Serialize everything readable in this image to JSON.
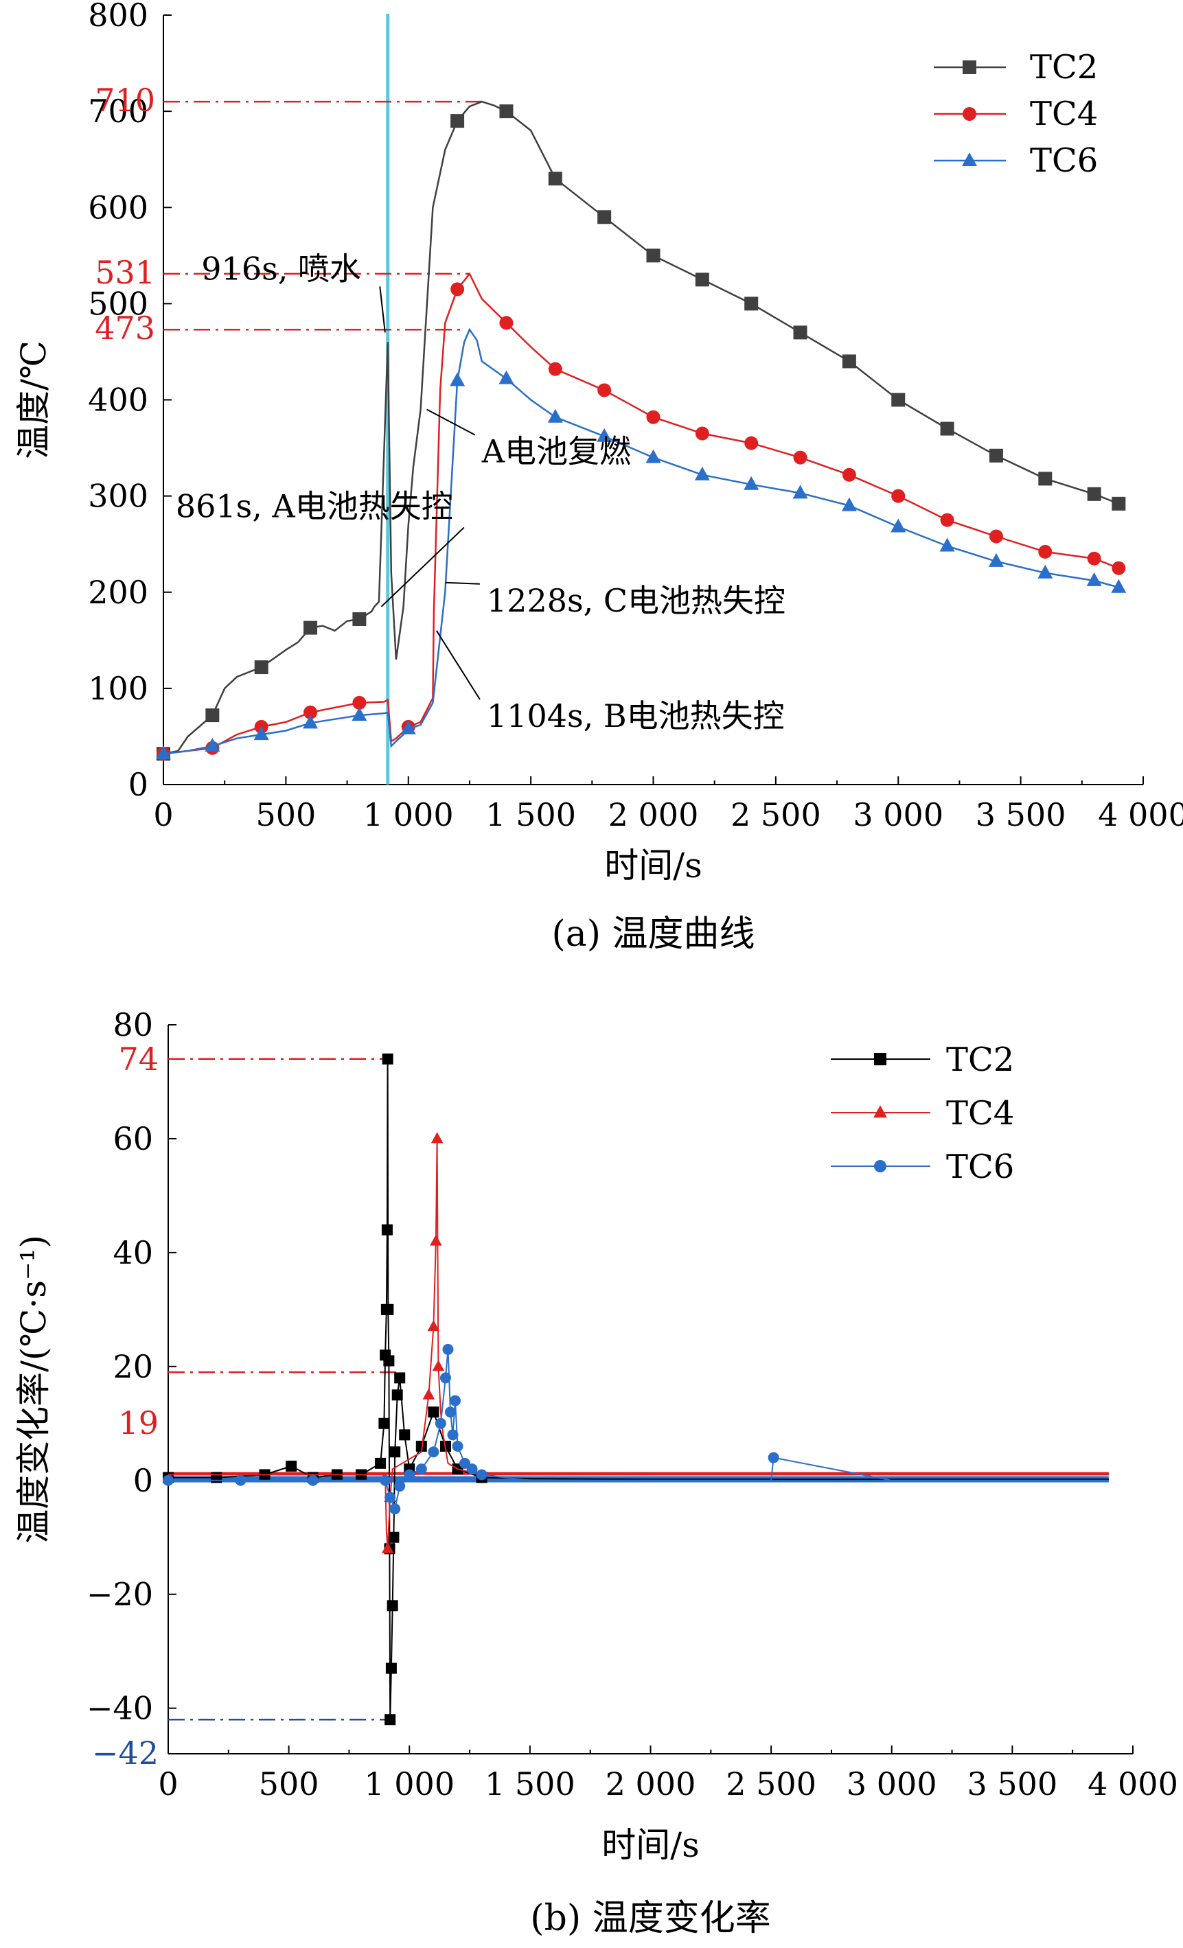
{
  "colors": {
    "TC2": "#404040",
    "TC4": "#e02020",
    "TC6": "#2a6fc9",
    "red": "#e02020",
    "blue": "#1f4e9c",
    "cyan": "#5bc8dc",
    "black": "#000000"
  },
  "chart_data": [
    {
      "type": "line",
      "caption": "(a) 温度曲线",
      "xlabel": "时间/s",
      "ylabel": "温度/℃",
      "xlim": [
        0,
        4000
      ],
      "ylim": [
        0,
        800
      ],
      "xticks": [
        0,
        500,
        1000,
        1500,
        2000,
        2500,
        3000,
        3500,
        4000
      ],
      "xtick_labels": [
        "0",
        "500",
        "1 000",
        "1 500",
        "2 000",
        "2 500",
        "3 000",
        "3 500",
        "4 000"
      ],
      "yticks": [
        0,
        100,
        200,
        300,
        400,
        500,
        600,
        700,
        800
      ],
      "ytick_labels": [
        "0",
        "100",
        "200",
        "300",
        "400",
        "500",
        "600",
        "700",
        "800"
      ],
      "legend_position": "top-right",
      "series": [
        {
          "name": "TC2",
          "marker": "square",
          "x": [
            0,
            60,
            100,
            200,
            250,
            300,
            400,
            500,
            550,
            600,
            650,
            700,
            750,
            800,
            850,
            861,
            880,
            916,
            930,
            950,
            980,
            1000,
            1020,
            1050,
            1100,
            1150,
            1200,
            1250,
            1300,
            1350,
            1400,
            1500,
            1600,
            1800,
            2000,
            2200,
            2400,
            2600,
            2800,
            3000,
            3200,
            3400,
            3600,
            3800,
            3900
          ],
          "y": [
            32,
            35,
            50,
            72,
            100,
            112,
            122,
            140,
            148,
            163,
            165,
            160,
            170,
            172,
            180,
            185,
            190,
            460,
            220,
            130,
            185,
            270,
            330,
            390,
            600,
            660,
            690,
            705,
            710,
            706,
            700,
            680,
            630,
            590,
            550,
            525,
            500,
            470,
            440,
            400,
            370,
            342,
            318,
            302,
            292
          ],
          "markers_x": [
            0,
            200,
            400,
            600,
            800,
            1200,
            1400,
            1600,
            1800,
            2000,
            2200,
            2400,
            2600,
            2800,
            3000,
            3200,
            3400,
            3600,
            3800,
            3900
          ]
        },
        {
          "name": "TC4",
          "marker": "circle",
          "x": [
            0,
            100,
            200,
            250,
            300,
            400,
            500,
            600,
            700,
            800,
            900,
            916,
            930,
            950,
            980,
            1000,
            1050,
            1100,
            1104,
            1130,
            1150,
            1200,
            1250,
            1300,
            1400,
            1500,
            1600,
            1800,
            2000,
            2200,
            2400,
            2600,
            2800,
            3000,
            3200,
            3400,
            3600,
            3800,
            3900
          ],
          "y": [
            32,
            35,
            38,
            45,
            52,
            60,
            65,
            75,
            80,
            85,
            86,
            88,
            45,
            48,
            55,
            60,
            65,
            90,
            180,
            410,
            480,
            515,
            531,
            505,
            480,
            455,
            432,
            410,
            382,
            365,
            355,
            340,
            322,
            300,
            275,
            258,
            242,
            235,
            225
          ],
          "markers_x": [
            0,
            200,
            400,
            600,
            800,
            1000,
            1200,
            1400,
            1600,
            1800,
            2000,
            2200,
            2400,
            2600,
            2800,
            3000,
            3200,
            3400,
            3600,
            3800,
            3900
          ]
        },
        {
          "name": "TC6",
          "marker": "triangle",
          "x": [
            0,
            100,
            200,
            300,
            400,
            500,
            600,
            700,
            800,
            900,
            916,
            930,
            950,
            980,
            1000,
            1050,
            1100,
            1150,
            1200,
            1228,
            1250,
            1280,
            1300,
            1400,
            1500,
            1600,
            1800,
            2000,
            2200,
            2400,
            2600,
            2800,
            3000,
            3200,
            3400,
            3600,
            3800,
            3900
          ],
          "y": [
            32,
            35,
            40,
            48,
            52,
            56,
            64,
            68,
            72,
            74,
            75,
            40,
            45,
            52,
            58,
            62,
            85,
            200,
            420,
            460,
            473,
            462,
            440,
            422,
            400,
            382,
            362,
            340,
            322,
            312,
            303,
            290,
            268,
            248,
            232,
            220,
            212,
            205
          ],
          "markers_x": [
            0,
            200,
            400,
            600,
            800,
            1000,
            1200,
            1400,
            1600,
            1800,
            2000,
            2200,
            2400,
            2600,
            2800,
            3000,
            3200,
            3400,
            3600,
            3800,
            3900
          ]
        }
      ],
      "reference_lines": [
        {
          "value": 710,
          "label": "710",
          "x_end": 1300
        },
        {
          "value": 531,
          "label": "531",
          "x_end": 1250
        },
        {
          "value": 473,
          "label": "473",
          "x_end": 1228
        }
      ],
      "annotations": [
        {
          "text": "916s, 喷水",
          "x_text": 155,
          "y_text": 525,
          "x_to": 905,
          "y_to": 470
        },
        {
          "text": "A电池复燃",
          "x_text": 1300,
          "y_text": 335,
          "x_to": 1075,
          "y_to": 390
        },
        {
          "text": "861s, A电池热失控",
          "x_text": 50,
          "y_text": 278,
          "x_to": 890,
          "y_to": 185
        },
        {
          "text": "1228s, C电池热失控",
          "x_text": 1320,
          "y_text": 180,
          "x_to": 1150,
          "y_to": 210
        },
        {
          "text": "1104s, B电池热失控",
          "x_text": 1320,
          "y_text": 60,
          "x_to": 1115,
          "y_to": 160
        }
      ],
      "event_line_x": 916
    },
    {
      "type": "scatter",
      "caption": "(b) 温度变化率",
      "xlabel": "时间/s",
      "ylabel": "温度变化率/(℃·s⁻¹)",
      "xlim": [
        0,
        4000
      ],
      "ylim": [
        -48,
        80
      ],
      "xticks": [
        0,
        500,
        1000,
        1500,
        2000,
        2500,
        3000,
        3500,
        4000
      ],
      "xtick_labels": [
        "0",
        "500",
        "1 000",
        "1 500",
        "2 000",
        "2 500",
        "3 000",
        "3 500",
        "4 000"
      ],
      "yticks": [
        -40,
        -20,
        0,
        20,
        40,
        60,
        80
      ],
      "ytick_labels": [
        "−40",
        "−20",
        "0",
        "20",
        "40",
        "60",
        "80"
      ],
      "legend_position": "top-right",
      "series": [
        {
          "name": "TC2",
          "marker": "square",
          "x": [
            0,
            200,
            400,
            510,
            600,
            700,
            800,
            880,
            895,
            900,
            905,
            908,
            910,
            912,
            915,
            918,
            920,
            925,
            930,
            935,
            940,
            950,
            960,
            980,
            1000,
            1050,
            1100,
            1150,
            1200,
            1300,
            1500,
            2000,
            2500,
            3000,
            3500,
            3900
          ],
          "y": [
            0.5,
            0.5,
            1,
            2.5,
            0.5,
            1,
            1,
            3,
            10,
            22,
            30,
            44,
            74,
            30,
            21,
            -12,
            -42,
            -33,
            -22,
            -10,
            5,
            15,
            18,
            8,
            2,
            6,
            12,
            6,
            2,
            0.5,
            0.3,
            0.2,
            0.2,
            0.2,
            0.2,
            0.2
          ]
        },
        {
          "name": "TC4",
          "marker": "triangle",
          "x": [
            0,
            500,
            900,
            905,
            910,
            920,
            930,
            1050,
            1080,
            1100,
            1110,
            1115,
            1120,
            1130,
            1140,
            1160,
            1200,
            1300,
            2000,
            3000,
            3900
          ],
          "y": [
            1,
            1,
            1,
            -9,
            -12,
            -3,
            2,
            5,
            15,
            27,
            42,
            60,
            20,
            12,
            8,
            3,
            2,
            1,
            1,
            1,
            1
          ],
          "markers_x": [
            910,
            920,
            1080,
            1100,
            1110,
            1115,
            1120
          ]
        },
        {
          "name": "TC6",
          "marker": "circle",
          "x": [
            0,
            300,
            600,
            900,
            920,
            940,
            960,
            1000,
            1050,
            1100,
            1130,
            1150,
            1160,
            1170,
            1180,
            1190,
            1200,
            1230,
            1260,
            1300,
            1500,
            2000,
            2500,
            2510,
            3000,
            3500,
            3900
          ],
          "y": [
            0,
            0,
            0,
            0,
            -3,
            -5,
            -1,
            1,
            2,
            5,
            10,
            18,
            23,
            12,
            8,
            14,
            6,
            3,
            2,
            1,
            0,
            0,
            0,
            4,
            0,
            0,
            0
          ]
        }
      ],
      "reference_lines": [
        {
          "value": 74,
          "label": "74",
          "color": "red",
          "x_end": 912
        },
        {
          "value": 19,
          "label": "19",
          "color": "red",
          "x_end": 950
        },
        {
          "value": -42,
          "label": "−42",
          "color": "blue",
          "x_end": 920
        }
      ],
      "legend_line": true
    }
  ]
}
